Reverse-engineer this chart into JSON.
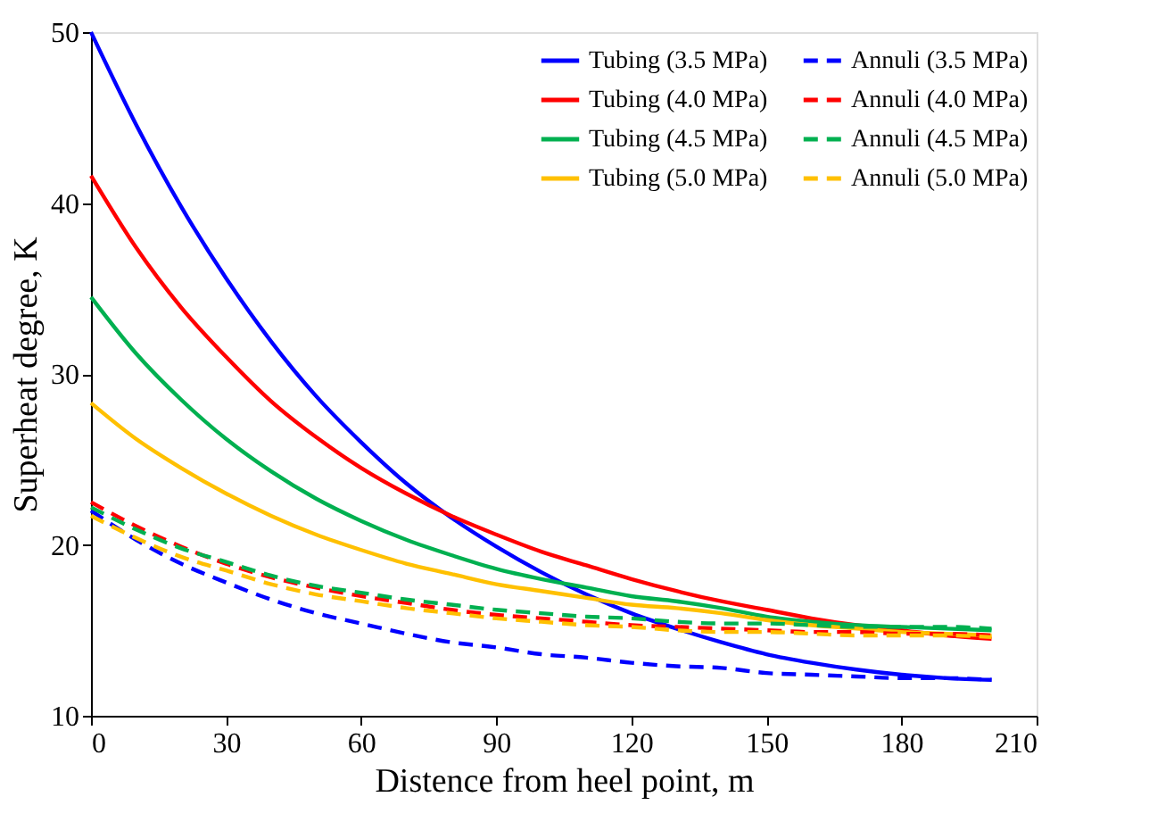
{
  "chart_data": {
    "type": "line",
    "xlabel": "Distence from heel point, m",
    "ylabel": "Superheat degree, K",
    "x": [
      0,
      10,
      20,
      30,
      40,
      50,
      60,
      70,
      80,
      90,
      100,
      110,
      120,
      130,
      140,
      150,
      160,
      170,
      180,
      190,
      200
    ],
    "xlim": [
      0,
      210
    ],
    "xticks": [
      0,
      30,
      60,
      90,
      120,
      150,
      180,
      210
    ],
    "ylim": [
      10,
      50
    ],
    "yticks": [
      10,
      20,
      30,
      40,
      50
    ],
    "grid": false,
    "legend": "top right",
    "marker": "none",
    "line_style": "solid",
    "series": [
      {
        "name": "Tubing (3.5 MPa)",
        "color": "#0000ff",
        "values": [
          50,
          44.6,
          39.8,
          35.6,
          31.9,
          28.7,
          26.0,
          23.6,
          21.6,
          19.9,
          18.4,
          17.1,
          16.0,
          15.1,
          14.3,
          13.6,
          13.1,
          12.7,
          12.4,
          12.2,
          12.1
        ]
      },
      {
        "name": "Tubing (4.0 MPa)",
        "color": "#ff0000",
        "values": [
          41.6,
          37.4,
          33.9,
          31.0,
          28.4,
          26.3,
          24.5,
          23.0,
          21.7,
          20.6,
          19.6,
          18.8,
          18.0,
          17.3,
          16.7,
          16.2,
          15.7,
          15.3,
          15.0,
          14.7,
          14.5
        ]
      },
      {
        "name": "Tubing (4.5 MPa)",
        "color": "#00b050",
        "values": [
          34.5,
          31.2,
          28.5,
          26.2,
          24.3,
          22.7,
          21.4,
          20.3,
          19.4,
          18.6,
          18.0,
          17.5,
          17.0,
          16.7,
          16.3,
          15.8,
          15.5,
          15.3,
          15.2,
          15.1,
          15.0
        ]
      },
      {
        "name": "Tubing (5.0 MPa)",
        "color": "#ffc000",
        "values": [
          28.3,
          26.2,
          24.5,
          23.0,
          21.7,
          20.6,
          19.7,
          18.9,
          18.3,
          17.7,
          17.3,
          16.9,
          16.5,
          16.3,
          16.0,
          15.6,
          15.3,
          15.1,
          14.9,
          14.8,
          14.7
        ]
      },
      {
        "name": "Annuli (3.5 MPa)",
        "color": "#0000ff",
        "line_style": "dashed",
        "values": [
          22,
          20.3,
          18.9,
          17.8,
          16.8,
          16.0,
          15.4,
          14.8,
          14.3,
          14.0,
          13.6,
          13.4,
          13.1,
          12.9,
          12.8,
          12.5,
          12.4,
          12.3,
          12.2,
          12.2,
          12.1
        ]
      },
      {
        "name": "Annuli (4.0 MPa)",
        "color": "#ff0000",
        "line_style": "dashed",
        "values": [
          22.5,
          21.1,
          19.9,
          18.9,
          18.1,
          17.5,
          17.0,
          16.6,
          16.2,
          15.9,
          15.7,
          15.5,
          15.3,
          15.2,
          15.1,
          15.0,
          14.9,
          14.9,
          14.8,
          14.8,
          14.7
        ]
      },
      {
        "name": "Annuli (4.5 MPa)",
        "color": "#00b050",
        "line_style": "dashed",
        "values": [
          22.2,
          20.9,
          19.8,
          19.0,
          18.2,
          17.6,
          17.2,
          16.8,
          16.5,
          16.2,
          16.0,
          15.8,
          15.7,
          15.5,
          15.4,
          15.4,
          15.3,
          15.2,
          15.2,
          15.2,
          15.1
        ]
      },
      {
        "name": "Annuli (5.0 MPa)",
        "color": "#ffc000",
        "line_style": "dashed",
        "values": [
          21.7,
          20.4,
          19.3,
          18.5,
          17.7,
          17.1,
          16.7,
          16.3,
          16.0,
          15.7,
          15.5,
          15.3,
          15.2,
          15.0,
          14.9,
          14.9,
          14.8,
          14.7,
          14.7,
          14.7,
          14.6
        ]
      }
    ]
  }
}
